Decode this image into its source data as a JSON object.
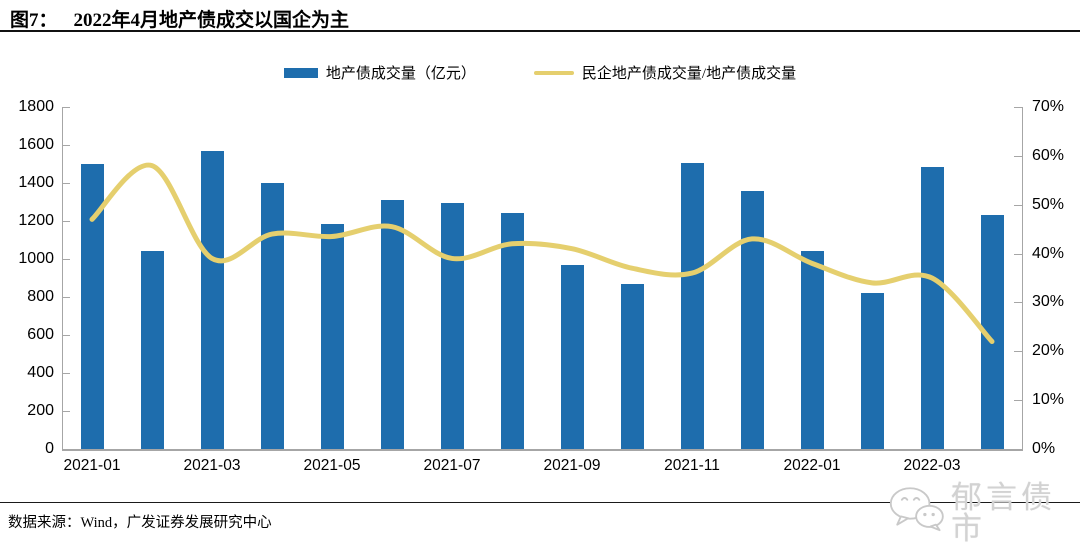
{
  "header": {
    "figure_label": "图7：",
    "title": "2022年4月地产债成交以国企为主"
  },
  "legend": {
    "items": [
      {
        "label": "地产债成交量（亿元）",
        "type": "bar"
      },
      {
        "label": "民企地产债成交量/地产债成交量",
        "type": "line"
      }
    ]
  },
  "chart_data": {
    "type": "bar",
    "title": "2022年4月地产债成交以国企为主",
    "categories": [
      "2021-01",
      "2021-02",
      "2021-03",
      "2021-04",
      "2021-05",
      "2021-06",
      "2021-07",
      "2021-08",
      "2021-09",
      "2021-10",
      "2021-11",
      "2021-12",
      "2022-01",
      "2022-02",
      "2022-03",
      "2022-04"
    ],
    "x_tick_labels": [
      "2021-01",
      "2021-03",
      "2021-05",
      "2021-07",
      "2021-09",
      "2021-11",
      "2022-01",
      "2022-03"
    ],
    "series": [
      {
        "name": "地产债成交量（亿元）",
        "type": "bar",
        "axis": "left",
        "values": [
          1500,
          1040,
          1570,
          1400,
          1185,
          1310,
          1295,
          1240,
          970,
          870,
          1505,
          1360,
          1040,
          820,
          1485,
          1230
        ]
      },
      {
        "name": "民企地产债成交量/地产债成交量",
        "type": "line",
        "axis": "right",
        "values": [
          47,
          58,
          39,
          44,
          43.5,
          45.5,
          39,
          42,
          41,
          37,
          36,
          43,
          38,
          34,
          35,
          22
        ]
      }
    ],
    "left_axis": {
      "min": 0,
      "max": 1800,
      "step": 200,
      "ticks": [
        "0",
        "200",
        "400",
        "600",
        "800",
        "1000",
        "1200",
        "1400",
        "1600",
        "1800"
      ]
    },
    "right_axis": {
      "min": 0,
      "max": 70,
      "step": 10,
      "suffix": "%",
      "ticks": [
        "0%",
        "10%",
        "20%",
        "30%",
        "40%",
        "50%",
        "60%",
        "70%"
      ]
    },
    "grid": "off",
    "legend_position": "top"
  },
  "colors": {
    "bar": "#1e6dad",
    "line": "#e5cf6e",
    "axis": "#a6a6a6",
    "text": "#000000",
    "watermark": "#d2d2d2"
  },
  "footer": {
    "source": "数据来源：Wind，广发证券发展研究中心"
  },
  "watermark": {
    "icon": "wechat-icon",
    "text": "郁言债市"
  }
}
